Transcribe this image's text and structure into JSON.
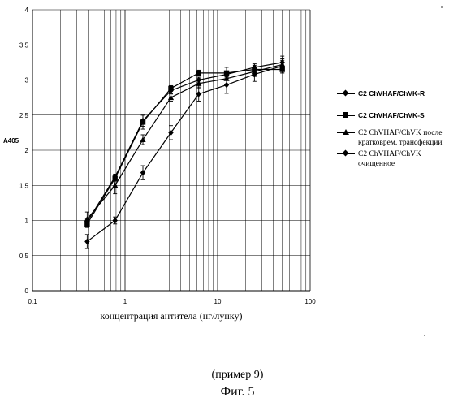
{
  "chart_data": {
    "type": "line",
    "xscale": "log",
    "xlim": [
      0.1,
      100
    ],
    "ylim": [
      0,
      4
    ],
    "x_ticks": [
      "0,1",
      "1",
      "10",
      "100"
    ],
    "y_ticks": [
      "0",
      "0,5",
      "1",
      "1,5",
      "2",
      "2,5",
      "3",
      "3,5",
      "4"
    ],
    "xlabel": "концентрация антитела (нг/лунку)",
    "ylabel": "A405",
    "grid": true,
    "legend_position": "right",
    "x": [
      0.39,
      0.78,
      1.56,
      3.13,
      6.25,
      12.5,
      25,
      50
    ],
    "series": [
      {
        "name": "C2 ChVHAF/ChVK-R",
        "marker": "diamond",
        "values": [
          0.98,
          1.62,
          2.42,
          2.85,
          3.0,
          3.08,
          3.18,
          3.25
        ],
        "errors": [
          0.04,
          0.04,
          0.08,
          0.04,
          0.04,
          0.04,
          0.05,
          0.05
        ]
      },
      {
        "name": "C2 ChVHAF/ChVK-S",
        "marker": "square",
        "values": [
          0.95,
          1.6,
          2.4,
          2.88,
          3.1,
          3.1,
          3.15,
          3.15
        ],
        "errors": [
          0.05,
          0.04,
          0.1,
          0.04,
          0.04,
          0.08,
          0.06,
          0.05
        ]
      },
      {
        "name": "C2 ChVHAF/ChVK после кратковрем. трансфекции",
        "marker": "triangle",
        "values": [
          1.02,
          1.5,
          2.15,
          2.75,
          2.95,
          3.02,
          3.12,
          3.22
        ],
        "errors": [
          0.1,
          0.12,
          0.07,
          0.05,
          0.07,
          0.08,
          0.07,
          0.12
        ]
      },
      {
        "name": "C2 ChVHAF/ChVK очищенное",
        "marker": "diamond",
        "values": [
          0.7,
          1.0,
          1.68,
          2.25,
          2.8,
          2.93,
          3.08,
          3.2
        ],
        "errors": [
          0.1,
          0.05,
          0.1,
          0.1,
          0.1,
          0.12,
          0.1,
          0.08
        ]
      }
    ]
  },
  "legend": {
    "items": [
      {
        "label": "C2 ChVHAF/ChVK-R"
      },
      {
        "label": "C2 ChVHAF/ChVK-S"
      },
      {
        "label": "C2 ChVHAF/ChVK после кратковрем. трансфекции"
      },
      {
        "label": "C2 ChVHAF/ChVK очищенное"
      }
    ]
  },
  "caption": {
    "example": "(пример 9)",
    "figure": "Фиг. 5"
  }
}
